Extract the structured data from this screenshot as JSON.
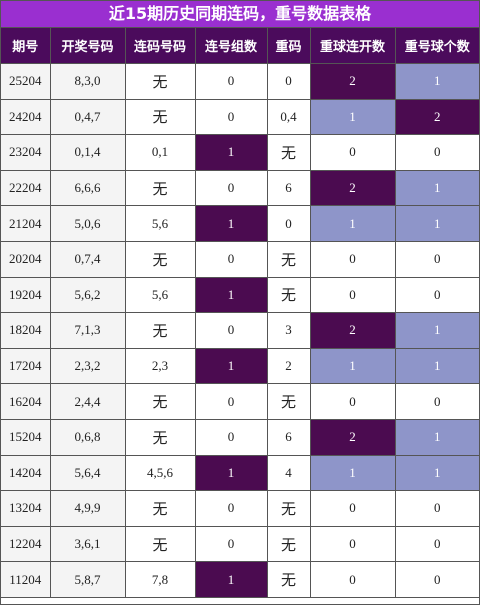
{
  "title": "近15期历史同期连码，重号数据表格",
  "table": {
    "header": [
      "期号",
      "开奖号码",
      "连码号码",
      "连号组数",
      "重码",
      "重球连开数",
      "重号球个数"
    ],
    "rows": [
      [
        "25204",
        "8,3,0",
        "无",
        "0",
        "0",
        "2",
        "1"
      ],
      [
        "24204",
        "0,4,7",
        "无",
        "0",
        "0,4",
        "1",
        "2"
      ],
      [
        "23204",
        "0,1,4",
        "0,1",
        "1",
        "无",
        "0",
        "0"
      ],
      [
        "22204",
        "6,6,6",
        "无",
        "0",
        "6",
        "2",
        "1"
      ],
      [
        "21204",
        "5,0,6",
        "5,6",
        "1",
        "0",
        "1",
        "1"
      ],
      [
        "20204",
        "0,7,4",
        "无",
        "0",
        "无",
        "0",
        "0"
      ],
      [
        "19204",
        "5,6,2",
        "5,6",
        "1",
        "无",
        "0",
        "0"
      ],
      [
        "18204",
        "7,1,3",
        "无",
        "0",
        "3",
        "2",
        "1"
      ],
      [
        "17204",
        "2,3,2",
        "2,3",
        "1",
        "2",
        "1",
        "1"
      ],
      [
        "16204",
        "2,4,4",
        "无",
        "0",
        "无",
        "0",
        "0"
      ],
      [
        "15204",
        "0,6,8",
        "无",
        "0",
        "6",
        "2",
        "1"
      ],
      [
        "14204",
        "5,6,4",
        "4,5,6",
        "1",
        "4",
        "1",
        "1"
      ],
      [
        "13204",
        "4,9,9",
        "无",
        "0",
        "无",
        "0",
        "0"
      ],
      [
        "12204",
        "3,6,1",
        "无",
        "0",
        "无",
        "0",
        "0"
      ],
      [
        "11204",
        "5,8,7",
        "7,8",
        "1",
        "无",
        "0",
        "0"
      ]
    ]
  }
}
